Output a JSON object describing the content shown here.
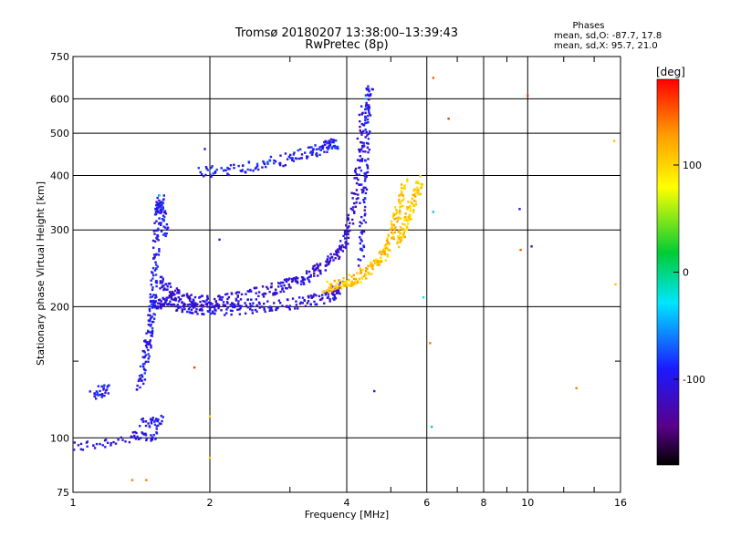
{
  "chart_data": {
    "type": "scatter",
    "title": "Tromsø 20180207 13:38:00–13:39:43",
    "subtitle": "RwPretec (8p)",
    "xlabel": "Frequency [MHz]",
    "ylabel": "Stationary phase Virtual Height [km]",
    "x_scale": "log",
    "y_scale": "log",
    "xlim": [
      1,
      16
    ],
    "ylim": [
      75,
      750
    ],
    "x_ticks": [
      1,
      2,
      4,
      6,
      8,
      10,
      16
    ],
    "x_minor_ticks": [
      3,
      5,
      7,
      9,
      12,
      14
    ],
    "y_ticks": [
      75,
      100,
      200,
      300,
      400,
      500,
      600,
      750
    ],
    "y_minor_ticks": [
      150
    ],
    "grid": true,
    "phase_info": {
      "heading": "Phases",
      "o_line": "mean, sd,O: -87.7, 17.8",
      "x_line": "mean, sd,X:  95.7, 21.0"
    },
    "colorbar": {
      "label": "[deg]",
      "range": [
        -180,
        180
      ],
      "ticks": [
        100,
        0,
        -100
      ],
      "tick_labels": [
        "100",
        "0",
        "-100"
      ]
    },
    "traces": [
      {
        "x": [
          1.0,
          1.35,
          1.55
        ],
        "y": [
          95,
          100,
          102
        ],
        "phase": -105
      },
      {
        "x": [
          1.1,
          1.2
        ],
        "y": [
          126,
          130
        ],
        "phase": -95
      },
      {
        "x": [
          1.42,
          1.58
        ],
        "y": [
          108,
          110
        ],
        "phase": -100
      },
      {
        "x": [
          1.4,
          1.45,
          1.48,
          1.5,
          1.52,
          1.54,
          1.56,
          1.6
        ],
        "y": [
          130,
          155,
          180,
          210,
          260,
          330,
          350,
          290
        ],
        "phase": -95
      },
      {
        "x": [
          1.5,
          1.6,
          1.75,
          1.9,
          2.1,
          2.4,
          2.8,
          3.3,
          3.7,
          3.9
        ],
        "y": [
          200,
          205,
          200,
          198,
          197,
          198,
          201,
          206,
          212,
          222
        ],
        "phase": -105
      },
      {
        "x": [
          1.55,
          1.65,
          1.8,
          2.0,
          2.3,
          2.7,
          3.0,
          3.3,
          3.6,
          3.9,
          4.1,
          4.25,
          4.35
        ],
        "y": [
          230,
          215,
          208,
          205,
          210,
          218,
          225,
          235,
          250,
          270,
          320,
          420,
          580
        ],
        "phase": -110
      },
      {
        "x": [
          4.3,
          4.35,
          4.4,
          4.45,
          4.5
        ],
        "y": [
          250,
          350,
          450,
          560,
          640
        ],
        "phase": -100
      },
      {
        "x": [
          1.9,
          2.3,
          2.8,
          3.3,
          3.6,
          3.8
        ],
        "y": [
          405,
          415,
          430,
          450,
          465,
          475
        ],
        "phase": -95
      },
      {
        "x": [
          3.6,
          3.9,
          4.2,
          4.5,
          4.8,
          5.0,
          5.2,
          5.4
        ],
        "y": [
          222,
          225,
          232,
          245,
          262,
          290,
          330,
          390
        ],
        "phase": 110
      },
      {
        "x": [
          5.2,
          5.4,
          5.6,
          5.8
        ],
        "y": [
          280,
          310,
          350,
          390
        ],
        "phase": 105
      }
    ],
    "scatter_points": [
      {
        "x": 1.35,
        "y": 80,
        "phase": 140
      },
      {
        "x": 1.45,
        "y": 80,
        "phase": 140
      },
      {
        "x": 2.0,
        "y": 90,
        "phase": 105
      },
      {
        "x": 2.0,
        "y": 112,
        "phase": 100
      },
      {
        "x": 1.85,
        "y": 145,
        "phase": 160
      },
      {
        "x": 4.6,
        "y": 128,
        "phase": -100
      },
      {
        "x": 6.15,
        "y": 106,
        "phase": -40
      },
      {
        "x": 6.1,
        "y": 165,
        "phase": 140
      },
      {
        "x": 6.2,
        "y": 670,
        "phase": 150
      },
      {
        "x": 6.7,
        "y": 540,
        "phase": 160
      },
      {
        "x": 5.9,
        "y": 210,
        "phase": -30
      },
      {
        "x": 6.2,
        "y": 330,
        "phase": -40
      },
      {
        "x": 9.6,
        "y": 335,
        "phase": -110
      },
      {
        "x": 9.65,
        "y": 270,
        "phase": 150
      },
      {
        "x": 10.2,
        "y": 275,
        "phase": -110
      },
      {
        "x": 10.0,
        "y": 610,
        "phase": 160
      },
      {
        "x": 12.8,
        "y": 130,
        "phase": 140
      },
      {
        "x": 15.5,
        "y": 480,
        "phase": 110
      },
      {
        "x": 15.6,
        "y": 225,
        "phase": 110
      },
      {
        "x": 1.55,
        "y": 360,
        "phase": -30
      },
      {
        "x": 4.4,
        "y": 600,
        "phase": -40
      },
      {
        "x": 2.1,
        "y": 285,
        "phase": -100
      },
      {
        "x": 1.95,
        "y": 460,
        "phase": -110
      }
    ]
  }
}
